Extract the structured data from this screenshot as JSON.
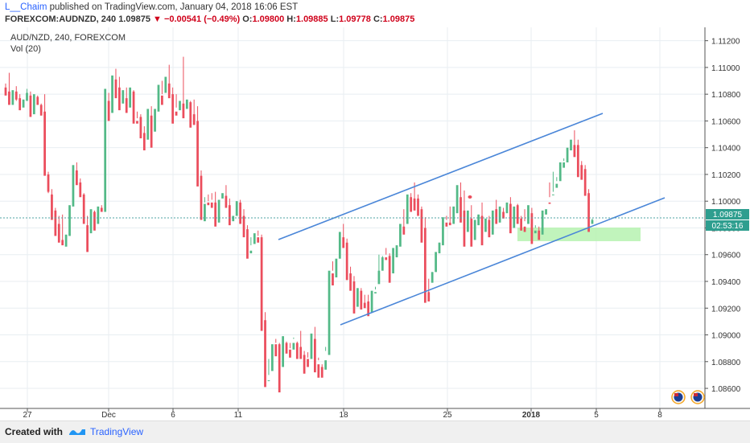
{
  "header": {
    "author": "L__Chaim",
    "published_text": "published on TradingView.com, January 04, 2018 16:06 EST",
    "symbol": "FOREXCOM:AUDNZD, 240",
    "last": "1.09875",
    "change": "▼ −0.00541 (−0.49%)",
    "open_label": "O:",
    "open": "1.09800",
    "high_label": "H:",
    "high": "1.09885",
    "low_label": "L:",
    "low": "1.09778",
    "close_label": "C:",
    "close": "1.09875"
  },
  "legend": {
    "title": "AUD/NZD, 240, FOREXCOM",
    "indicator": "Vol (20)"
  },
  "price_badge": "1.09875",
  "timer_badge": "02:53:16",
  "footer": {
    "created": "Created with",
    "brand": "TradingView"
  },
  "colors": {
    "up": "#53b987",
    "down": "#eb4d5c",
    "trendline": "#4a86d8",
    "zone": "#b6f2b0"
  },
  "chart_data": {
    "type": "candlestick",
    "ylim": [
      1.0845,
      1.113
    ],
    "y_ticks": [
      "1.11200",
      "1.11000",
      "1.10800",
      "1.10600",
      "1.10400",
      "1.10200",
      "1.10000",
      "1.09800",
      "1.09600",
      "1.09400",
      "1.09200",
      "1.09000",
      "1.08800",
      "1.08600"
    ],
    "x_ticks": [
      "27",
      "Dec",
      "6",
      "11",
      "18",
      "25",
      "2018",
      "5",
      "8"
    ],
    "last_price": 1.09875,
    "candles": [
      [
        1.1085,
        1.1088,
        1.1082,
        1.1079
      ],
      [
        1.1082,
        1.1096,
        1.1076,
        1.1072
      ],
      [
        1.1072,
        1.1079,
        1.1081,
        1.1083
      ],
      [
        1.1082,
        1.1086,
        1.1075,
        1.1076
      ],
      [
        1.1077,
        1.108,
        1.1074,
        1.1068
      ],
      [
        1.107,
        1.1071,
        1.1074,
        1.1076
      ],
      [
        1.1075,
        1.1084,
        1.1081,
        1.1081
      ],
      [
        1.1079,
        1.1082,
        1.1068,
        1.1063
      ],
      [
        1.1065,
        1.1066,
        1.1078,
        1.108
      ],
      [
        1.1078,
        1.1079,
        1.1072,
        1.1072
      ],
      [
        1.1072,
        1.1073,
        1.1069,
        1.1064
      ],
      [
        1.1067,
        1.108,
        1.1022,
        1.1019
      ],
      [
        1.102,
        1.1022,
        1.1006,
        1.1007
      ],
      [
        1.1005,
        1.1009,
        1.0991,
        1.0986
      ],
      [
        1.0993,
        1.0995,
        1.0983,
        1.0974
      ],
      [
        1.0983,
        1.0989,
        1.0978,
        1.0969
      ],
      [
        1.0971,
        1.099,
        1.097,
        1.0967
      ],
      [
        1.0966,
        1.0969,
        1.0972,
        1.0975
      ],
      [
        1.0974,
        1.0981,
        1.0996,
        1.0997
      ],
      [
        1.0996,
        1.1021,
        1.1022,
        1.1027
      ],
      [
        1.1023,
        1.1029,
        1.1013,
        1.1012
      ],
      [
        1.1014,
        1.1017,
        1.1004,
        1.1003
      ],
      [
        1.1005,
        1.1006,
        1.0987,
        1.0983
      ],
      [
        1.0982,
        1.0989,
        1.0973,
        1.0962
      ],
      [
        1.0976,
        1.0985,
        1.0992,
        1.0994
      ],
      [
        1.0992,
        1.0993,
        1.0987,
        1.0978
      ],
      [
        1.0983,
        1.0986,
        1.0993,
        1.0996
      ],
      [
        1.0995,
        1.0997,
        1.0994,
        1.0992
      ],
      [
        1.0992,
        1.1004,
        1.1081,
        1.1084
      ],
      [
        1.1075,
        1.1081,
        1.1065,
        1.106
      ],
      [
        1.1066,
        1.107,
        1.1087,
        1.1094
      ],
      [
        1.1091,
        1.1099,
        1.1079,
        1.1077
      ],
      [
        1.1085,
        1.1093,
        1.1077,
        1.1068
      ],
      [
        1.1073,
        1.1074,
        1.108,
        1.1083
      ],
      [
        1.1077,
        1.1085,
        1.107,
        1.1066
      ],
      [
        1.107,
        1.1071,
        1.1081,
        1.1085
      ],
      [
        1.1082,
        1.1083,
        1.1059,
        1.1058
      ],
      [
        1.106,
        1.1067,
        1.1062,
        1.1058
      ],
      [
        1.1063,
        1.1065,
        1.105,
        1.1047
      ],
      [
        1.1051,
        1.1056,
        1.1044,
        1.1038
      ],
      [
        1.1046,
        1.1049,
        1.1067,
        1.1069
      ],
      [
        1.1064,
        1.1071,
        1.1049,
        1.104
      ],
      [
        1.1052,
        1.106,
        1.1067,
        1.1069
      ],
      [
        1.1067,
        1.1071,
        1.108,
        1.1087
      ],
      [
        1.1079,
        1.109,
        1.108,
        1.1072
      ],
      [
        1.1081,
        1.1084,
        1.1087,
        1.1093
      ],
      [
        1.1088,
        1.1102,
        1.1081,
        1.1077
      ],
      [
        1.108,
        1.1085,
        1.1064,
        1.1058
      ],
      [
        1.1067,
        1.108,
        1.107,
        1.1064
      ],
      [
        1.1068,
        1.1069,
        1.1071,
        1.1075
      ],
      [
        1.1073,
        1.1108,
        1.1065,
        1.1062
      ],
      [
        1.1069,
        1.1072,
        1.1074,
        1.1076
      ],
      [
        1.1074,
        1.1075,
        1.1064,
        1.1055
      ],
      [
        1.1065,
        1.1076,
        1.1059,
        1.1057
      ],
      [
        1.106,
        1.1071,
        1.1018,
        1.1011
      ],
      [
        1.1019,
        1.1023,
        1.0986,
        1.0986
      ],
      [
        1.0985,
        1.1003,
        1.0999,
        1.0998
      ],
      [
        1.0999,
        1.1005,
        1.1,
        1.0997
      ],
      [
        1.0999,
        1.1006,
        1.1001,
        1.0995
      ],
      [
        1.0999,
        1.1007,
        1.0983,
        1.0981
      ],
      [
        1.0984,
        1.1,
        1.1,
        1.1001
      ],
      [
        1.1002,
        1.1004,
        1.1004,
        1.1006
      ],
      [
        1.1004,
        1.1012,
        1.0996,
        1.0995
      ],
      [
        1.0997,
        1.1002,
        1.0984,
        1.0982
      ],
      [
        1.0985,
        1.0989,
        1.0989,
        1.0989
      ],
      [
        1.0989,
        1.0996,
        1.1,
        1.1
      ],
      [
        1.0999,
        1.1001,
        1.0987,
        1.0983
      ],
      [
        1.0989,
        1.0994,
        1.0975,
        1.0973
      ],
      [
        1.0979,
        1.0982,
        1.0959,
        1.0957
      ],
      [
        1.0961,
        1.0973,
        1.0967,
        1.0963
      ],
      [
        1.0968,
        1.0971,
        1.0975,
        1.0976
      ],
      [
        1.0973,
        1.0978,
        1.0974,
        1.0969
      ],
      [
        1.0973,
        1.0975,
        1.0908,
        1.0903
      ],
      [
        1.0911,
        1.0917,
        1.0866,
        1.0861
      ],
      [
        1.0866,
        1.0882,
        1.087,
        1.0866
      ],
      [
        1.0873,
        1.0881,
        1.0891,
        1.0893
      ],
      [
        1.0893,
        1.0897,
        1.0894,
        1.0884
      ],
      [
        1.0893,
        1.0894,
        1.0874,
        1.0857
      ],
      [
        1.0876,
        1.0896,
        1.0899,
        1.0899
      ],
      [
        1.0894,
        1.0895,
        1.0891,
        1.0886
      ],
      [
        1.0889,
        1.0894,
        1.089,
        1.0883
      ],
      [
        1.0889,
        1.0898,
        1.0897,
        1.0894
      ],
      [
        1.0894,
        1.0895,
        1.0894,
        1.0882
      ],
      [
        1.0891,
        1.0903,
        1.0886,
        1.0882
      ],
      [
        1.0885,
        1.0888,
        1.0881,
        1.0871
      ],
      [
        1.0882,
        1.0887,
        1.0883,
        1.0876
      ],
      [
        1.0882,
        1.0885,
        1.0895,
        1.0901
      ],
      [
        1.0897,
        1.0906,
        1.0886,
        1.0872
      ],
      [
        1.0878,
        1.0883,
        1.0881,
        1.0868
      ],
      [
        1.0876,
        1.0878,
        1.0873,
        1.0868
      ],
      [
        1.0874,
        1.0891,
        1.0888,
        1.0881
      ],
      [
        1.0885,
        1.0939,
        1.0944,
        1.0948
      ],
      [
        1.0946,
        1.0955,
        1.0948,
        1.0937
      ],
      [
        1.0943,
        1.0958,
        1.0958,
        1.0957
      ],
      [
        1.0957,
        1.096,
        1.0969,
        1.0977
      ],
      [
        1.0973,
        1.0983,
        1.0967,
        1.0965
      ],
      [
        1.0969,
        1.0972,
        1.0951,
        1.0941
      ],
      [
        1.0946,
        1.0951,
        1.0942,
        1.0933
      ],
      [
        1.094,
        1.0944,
        1.0923,
        1.0916
      ],
      [
        1.0921,
        1.0927,
        1.0933,
        1.0935
      ],
      [
        1.0933,
        1.0935,
        1.0927,
        1.0919
      ],
      [
        1.0924,
        1.093,
        1.0922,
        1.092
      ],
      [
        1.0925,
        1.093,
        1.0923,
        1.0914
      ],
      [
        1.0917,
        1.0928,
        1.0929,
        1.0933
      ],
      [
        1.0931,
        1.0936,
        1.0934,
        1.0932
      ],
      [
        1.0938,
        1.096,
        1.0945,
        1.0948
      ],
      [
        1.0948,
        1.0952,
        1.0959,
        1.0958
      ],
      [
        1.0958,
        1.0965,
        1.096,
        1.0956
      ],
      [
        1.0959,
        1.0961,
        1.0944,
        1.0939
      ],
      [
        1.0946,
        1.0955,
        1.0959,
        1.0965
      ],
      [
        1.0958,
        1.0962,
        1.0965,
        1.0967
      ],
      [
        1.0966,
        1.0972,
        1.0979,
        1.0983
      ],
      [
        1.0981,
        1.0994,
        1.0979,
        1.0975
      ],
      [
        1.0983,
        1.0995,
        1.1004,
        1.1005
      ],
      [
        1.1003,
        1.1006,
        1.0997,
        1.0992
      ],
      [
        1.1002,
        1.1014,
        1.0999,
        1.0993
      ],
      [
        1.1002,
        1.1005,
        1.0994,
        1.0989
      ],
      [
        1.0994,
        1.0996,
        1.0979,
        1.0969
      ],
      [
        1.098,
        1.0988,
        1.0957,
        1.0924
      ],
      [
        1.0932,
        1.0942,
        1.0931,
        1.0925
      ],
      [
        1.0939,
        1.0944,
        1.0947,
        1.0947
      ],
      [
        1.0947,
        1.0952,
        1.0958,
        1.0962
      ],
      [
        1.0961,
        1.0964,
        1.0969,
        1.0969
      ],
      [
        1.0967,
        1.0972,
        1.0984,
        1.0988
      ],
      [
        1.0984,
        1.0989,
        1.0986,
        1.0981
      ],
      [
        1.0984,
        1.0996,
        1.0984,
        1.0982
      ],
      [
        1.0983,
        1.0985,
        1.0994,
        1.0996
      ],
      [
        1.0991,
        1.0999,
        1.1004,
        1.1012
      ],
      [
        1.1003,
        1.1014,
        1.099,
        1.0984
      ],
      [
        1.0993,
        1.1008,
        1.0978,
        1.0966
      ],
      [
        1.0977,
        1.0981,
        1.0987,
        1.0993
      ],
      [
        1.0987,
        1.0997,
        1.0974,
        1.0966
      ],
      [
        1.0971,
        1.0978,
        1.0984,
        1.0986
      ],
      [
        1.0982,
        1.0989,
        1.099,
        1.099
      ],
      [
        1.0989,
        1.0999,
        1.0972,
        1.0967
      ],
      [
        1.0977,
        1.0982,
        1.0985,
        1.0987
      ],
      [
        1.0986,
        1.0989,
        1.0983,
        1.0973
      ],
      [
        1.0975,
        1.0989,
        1.0992,
        1.0993
      ],
      [
        1.0994,
        1.1001,
        1.0988,
        1.0983
      ],
      [
        1.0984,
        1.0989,
        1.0992,
        1.0996
      ],
      [
        1.0992,
        1.0995,
        1.0989,
        1.0987
      ],
      [
        1.0991,
        1.0993,
        1.0997,
        1.0999
      ],
      [
        1.0998,
        1.1003,
        1.0983,
        1.0976
      ],
      [
        1.098,
        1.0983,
        1.0995,
        1.0996
      ],
      [
        1.0997,
        1.0998,
        1.0989,
        1.0983
      ],
      [
        1.0987,
        1.0989,
        1.0984,
        1.0978
      ],
      [
        1.0981,
        1.0994,
        1.0985,
        1.0977
      ],
      [
        1.0983,
        1.0988,
        1.0993,
        1.0997
      ],
      [
        1.0991,
        1.0995,
        1.0978,
        1.0968
      ],
      [
        1.0976,
        1.0982,
        1.098,
        1.0978
      ],
      [
        1.0978,
        1.0981,
        1.0976,
        1.0971
      ],
      [
        1.0975,
        1.0979,
        1.099,
        1.0993
      ],
      [
        1.099,
        1.0995,
        1.0995,
        1.0994
      ],
      [
        1.0999,
        1.1014,
        1.1003,
        1.0998
      ],
      [
        1.1005,
        1.1022,
        1.1007,
        1.1005
      ],
      [
        1.101,
        1.1018,
        1.1015,
        1.1013
      ],
      [
        1.1015,
        1.1018,
        1.1026,
        1.1029
      ],
      [
        1.1025,
        1.1032,
        1.103,
        1.1029
      ],
      [
        1.1029,
        1.103,
        1.1037,
        1.104
      ],
      [
        1.1038,
        1.1041,
        1.1044,
        1.1046
      ],
      [
        1.1042,
        1.1053,
        1.104,
        1.1033
      ],
      [
        1.1042,
        1.1046,
        1.1023,
        1.1018
      ],
      [
        1.1027,
        1.103,
        1.1026,
        1.1016
      ],
      [
        1.1024,
        1.1027,
        1.1009,
        1.1004
      ],
      [
        1.1006,
        1.1009,
        1.0985,
        1.0977
      ],
      [
        1.0983,
        1.0985,
        1.0987,
        1.0986
      ]
    ]
  }
}
